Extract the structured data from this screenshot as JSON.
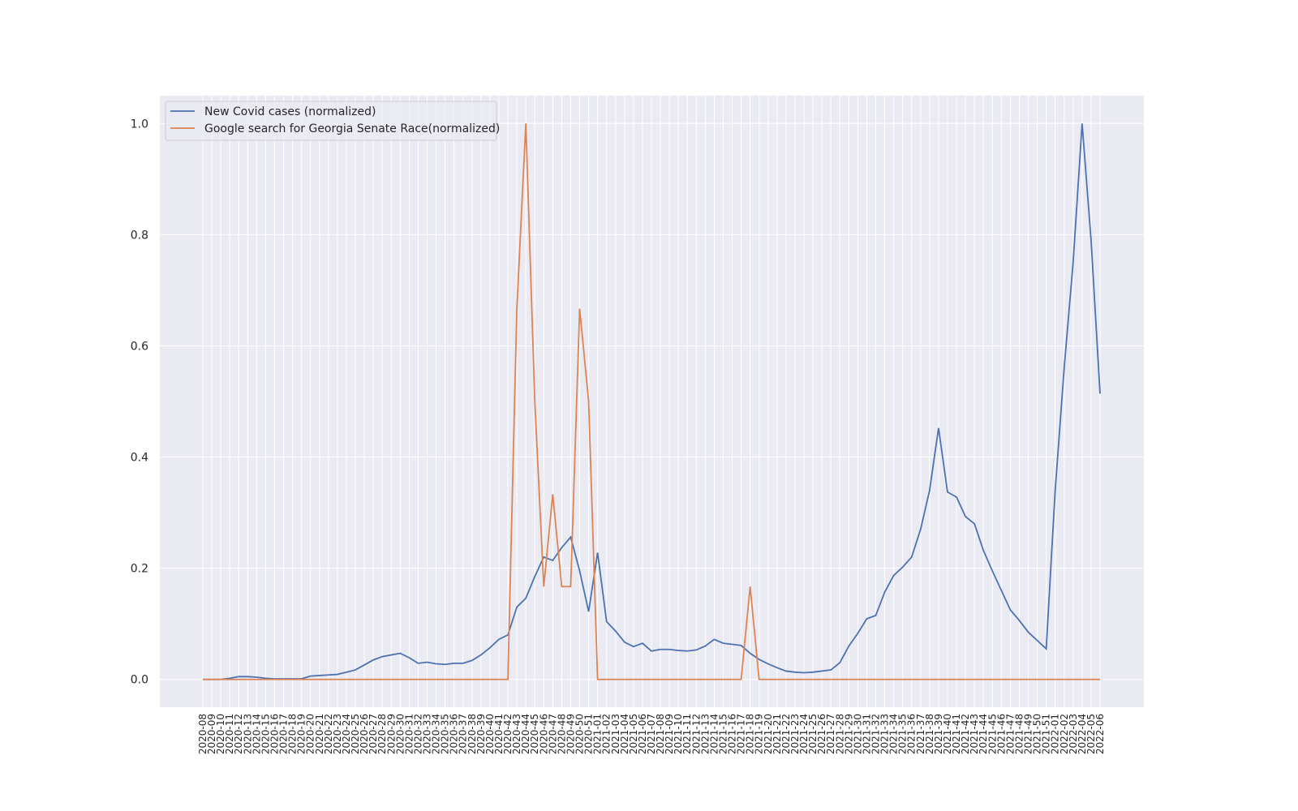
{
  "chart_data": {
    "type": "line",
    "categories": [
      "2020-08",
      "2020-09",
      "2020-10",
      "2020-11",
      "2020-12",
      "2020-13",
      "2020-14",
      "2020-15",
      "2020-16",
      "2020-17",
      "2020-18",
      "2020-19",
      "2020-20",
      "2020-21",
      "2020-22",
      "2020-23",
      "2020-24",
      "2020-25",
      "2020-26",
      "2020-27",
      "2020-28",
      "2020-29",
      "2020-30",
      "2020-31",
      "2020-32",
      "2020-33",
      "2020-34",
      "2020-35",
      "2020-36",
      "2020-37",
      "2020-38",
      "2020-39",
      "2020-40",
      "2020-41",
      "2020-42",
      "2020-43",
      "2020-44",
      "2020-45",
      "2020-46",
      "2020-47",
      "2020-48",
      "2020-49",
      "2020-50",
      "2020-51",
      "2021-01",
      "2021-02",
      "2021-03",
      "2021-04",
      "2021-05",
      "2021-06",
      "2021-07",
      "2021-08",
      "2021-09",
      "2021-10",
      "2021-11",
      "2021-12",
      "2021-13",
      "2021-14",
      "2021-15",
      "2021-16",
      "2021-17",
      "2021-18",
      "2021-19",
      "2021-20",
      "2021-21",
      "2021-22",
      "2021-23",
      "2021-24",
      "2021-25",
      "2021-26",
      "2021-27",
      "2021-28",
      "2021-29",
      "2021-30",
      "2021-31",
      "2021-32",
      "2021-33",
      "2021-34",
      "2021-35",
      "2021-36",
      "2021-37",
      "2021-38",
      "2021-39",
      "2021-40",
      "2021-41",
      "2021-42",
      "2021-43",
      "2021-44",
      "2021-45",
      "2021-46",
      "2021-47",
      "2021-48",
      "2021-49",
      "2021-50",
      "2021-51",
      "2022-01",
      "2022-02",
      "2022-03",
      "2022-04",
      "2022-05",
      "2022-06"
    ],
    "series": [
      {
        "name": "New Covid cases (normalized)",
        "color": "#4c72b0",
        "values": [
          0,
          0,
          0,
          0.002,
          0.005,
          0.005,
          0.004,
          0.002,
          0.001,
          0.001,
          0.001,
          0.001,
          0.006,
          0.007,
          0.008,
          0.009,
          0.013,
          0.017,
          0.026,
          0.035,
          0.041,
          0.044,
          0.047,
          0.039,
          0.029,
          0.031,
          0.028,
          0.027,
          0.029,
          0.029,
          0.034,
          0.044,
          0.057,
          0.072,
          0.08,
          0.13,
          0.146,
          0.185,
          0.22,
          0.214,
          0.237,
          0.256,
          0.195,
          0.122,
          0.228,
          0.104,
          0.087,
          0.067,
          0.059,
          0.065,
          0.051,
          0.054,
          0.054,
          0.052,
          0.051,
          0.053,
          0.06,
          0.072,
          0.065,
          0.063,
          0.061,
          0.047,
          0.036,
          0.028,
          0.021,
          0.015,
          0.013,
          0.012,
          0.013,
          0.015,
          0.017,
          0.03,
          0.06,
          0.083,
          0.109,
          0.115,
          0.157,
          0.187,
          0.202,
          0.22,
          0.27,
          0.34,
          0.452,
          0.337,
          0.328,
          0.293,
          0.28,
          0.232,
          0.195,
          0.16,
          0.125,
          0.106,
          0.085,
          0.07,
          0.055,
          0.34,
          0.56,
          0.75,
          1.0,
          0.79,
          0.514
        ]
      },
      {
        "name": "Google search for  Georgia Senate Race(normalized)",
        "color": "#dd8452",
        "values": [
          0,
          0,
          0,
          0,
          0,
          0,
          0,
          0,
          0,
          0,
          0,
          0,
          0,
          0,
          0,
          0,
          0,
          0,
          0,
          0,
          0,
          0,
          0,
          0,
          0,
          0,
          0,
          0,
          0,
          0,
          0,
          0,
          0,
          0,
          0,
          0.667,
          1.0,
          0.5,
          0.167,
          0.333,
          0.167,
          0.167,
          0.667,
          0.5,
          0,
          0,
          0,
          0,
          0,
          0,
          0,
          0,
          0,
          0,
          0,
          0,
          0,
          0,
          0,
          0,
          0,
          0.167,
          0,
          0,
          0,
          0,
          0,
          0,
          0,
          0,
          0,
          0,
          0,
          0,
          0,
          0,
          0,
          0,
          0,
          0,
          0,
          0,
          0,
          0,
          0,
          0,
          0,
          0,
          0,
          0,
          0,
          0,
          0,
          0,
          0,
          0,
          0,
          0,
          0,
          0,
          0
        ]
      }
    ],
    "ylim": [
      -0.05,
      1.05
    ],
    "yticks": [
      {
        "value": 0,
        "label": "0.0"
      },
      {
        "value": 0.2,
        "label": "0.2"
      },
      {
        "value": 0.4,
        "label": "0.4"
      },
      {
        "value": 0.6,
        "label": "0.6"
      },
      {
        "value": 0.8,
        "label": "0.8"
      },
      {
        "value": 1,
        "label": "1.0"
      }
    ],
    "grid": true,
    "legend": "upper left"
  }
}
